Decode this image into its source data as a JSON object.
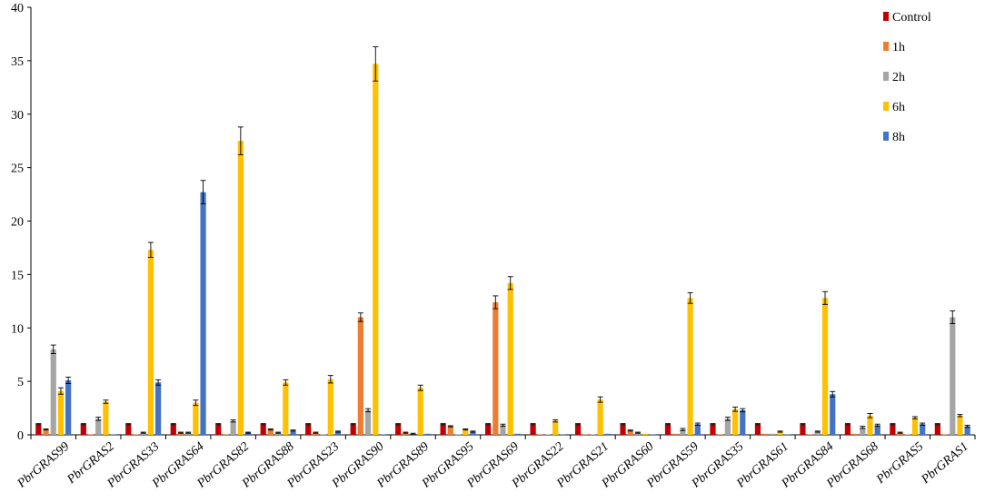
{
  "chart_data": {
    "type": "bar",
    "title": "",
    "xlabel": "",
    "ylabel": "",
    "ylim": [
      0,
      40
    ],
    "yticks": [
      0,
      5,
      10,
      15,
      20,
      25,
      30,
      35,
      40
    ],
    "grid": false,
    "legend_position": "top-right",
    "categories": [
      "PbrGRAS99",
      "PbrGRAS2",
      "PbrGRAS33",
      "PbrGRAS64",
      "PbrGRAS82",
      "PbrGRAS88",
      "PbrGRAS23",
      "PbrGRAS90",
      "PbrGRAS89",
      "PbrGRAS95",
      "PbrGRAS69",
      "PbrGRAS22",
      "PbrGRAS21",
      "PbrGRAS60",
      "PbrGRAS59",
      "PbrGRAS35",
      "PbrGRAS61",
      "PbrGRAS84",
      "PbrGRAS68",
      "PbrGRAS5",
      "PbrGRAS1"
    ],
    "series": [
      {
        "name": "Control",
        "color": "#c00000",
        "values": [
          1,
          1,
          1,
          1,
          1,
          1,
          1,
          1,
          1,
          1,
          1,
          1,
          1,
          1,
          1,
          1,
          1,
          1,
          1,
          1,
          1
        ],
        "errors": [
          0.05,
          0.05,
          0.05,
          0.05,
          0.05,
          0.05,
          0.05,
          0.05,
          0.05,
          0.05,
          0.05,
          0.05,
          0.05,
          0.05,
          0.05,
          0.05,
          0.05,
          0.05,
          0.05,
          0.05,
          0.05
        ]
      },
      {
        "name": "1h",
        "color": "#ed7d31",
        "values": [
          0.5,
          0.05,
          0.05,
          0.2,
          0.05,
          0.5,
          0.2,
          11.0,
          0.2,
          0.8,
          12.4,
          0.05,
          0.05,
          0.4,
          0.1,
          0.05,
          0.1,
          0.05,
          0.1,
          0.2,
          0.05
        ],
        "errors": [
          0.05,
          0.02,
          0.02,
          0.05,
          0.02,
          0.05,
          0.05,
          0.4,
          0.05,
          0.05,
          0.6,
          0.02,
          0.02,
          0.05,
          0.02,
          0.02,
          0.02,
          0.02,
          0.02,
          0.05,
          0.02
        ]
      },
      {
        "name": "2h",
        "color": "#a5a5a5",
        "values": [
          8.0,
          1.5,
          0.2,
          0.2,
          1.3,
          0.2,
          0.05,
          2.3,
          0.1,
          0.05,
          0.9,
          0.05,
          0.05,
          0.2,
          0.5,
          1.5,
          0.1,
          0.3,
          0.7,
          0.05,
          11.0
        ],
        "errors": [
          0.4,
          0.15,
          0.05,
          0.05,
          0.1,
          0.05,
          0.02,
          0.15,
          0.05,
          0.02,
          0.1,
          0.02,
          0.02,
          0.05,
          0.1,
          0.15,
          0.02,
          0.05,
          0.1,
          0.02,
          0.6
        ]
      },
      {
        "name": "6h",
        "color": "#ffc000",
        "values": [
          4.1,
          3.1,
          17.3,
          3.0,
          27.5,
          4.9,
          5.2,
          34.7,
          4.4,
          0.5,
          14.2,
          1.3,
          3.3,
          0.1,
          12.8,
          2.4,
          0.3,
          12.8,
          1.8,
          1.6,
          1.8
        ],
        "errors": [
          0.3,
          0.15,
          0.7,
          0.25,
          1.3,
          0.25,
          0.35,
          1.6,
          0.25,
          0.05,
          0.6,
          0.1,
          0.25,
          0.02,
          0.5,
          0.2,
          0.05,
          0.6,
          0.2,
          0.1,
          0.1
        ]
      },
      {
        "name": "8h",
        "color": "#4472c4",
        "values": [
          5.1,
          0.05,
          4.9,
          22.7,
          0.2,
          0.4,
          0.3,
          0.05,
          0.1,
          0.3,
          0.1,
          0.05,
          0.1,
          0.05,
          1.0,
          2.3,
          0.05,
          3.8,
          0.9,
          1.0,
          0.8
        ],
        "errors": [
          0.3,
          0.02,
          0.25,
          1.1,
          0.05,
          0.05,
          0.05,
          0.02,
          0.02,
          0.05,
          0.02,
          0.02,
          0.02,
          0.02,
          0.1,
          0.15,
          0.02,
          0.25,
          0.1,
          0.1,
          0.1
        ]
      }
    ]
  }
}
